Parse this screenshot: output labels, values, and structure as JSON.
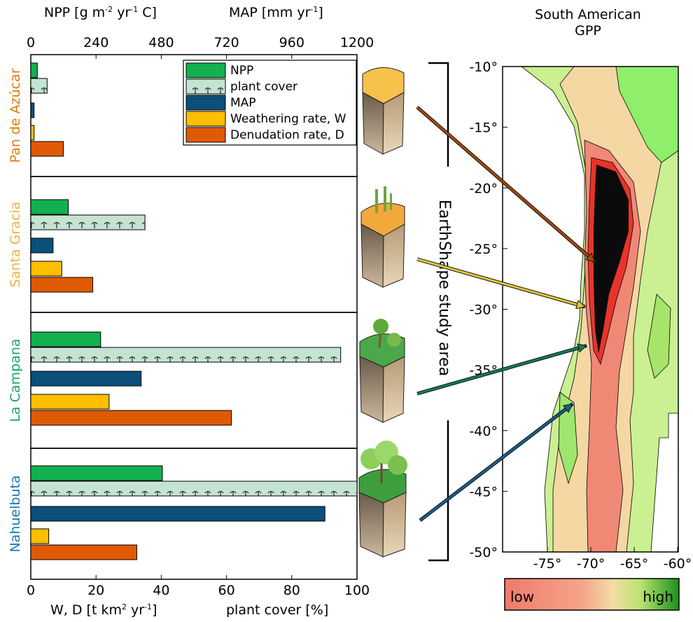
{
  "top_axis": {
    "npp_label": "NPP [g m",
    "npp_sup1": "-2",
    "npp_mid": " yr",
    "npp_sup2": "-1",
    "npp_end": " C]",
    "map_label": "MAP [mm yr",
    "map_sup": "-1",
    "map_end": "]",
    "ticks": [
      "0",
      "240",
      "480",
      "720",
      "960",
      "1200"
    ]
  },
  "bottom_axis": {
    "ticks": [
      "0",
      "20",
      "40",
      "60",
      "80",
      "100"
    ],
    "wd_label": "W, D [t km",
    "wd_sup": "2",
    "wd_end": " yr",
    "wd_sup2": "-1",
    "wd_close": "]",
    "cover_label": "plant cover [%]"
  },
  "legend": {
    "items": [
      "NPP",
      "plant cover",
      "MAP",
      "Weathering rate, W",
      "Denudation rate, D"
    ]
  },
  "colors": {
    "npp": "#12b04e",
    "cover": "#c5e3d3",
    "map": "#0b4f7a",
    "weathering": "#ffbe00",
    "denudation": "#e05a06",
    "pan": "#e07b10",
    "santa": "#f2b04a",
    "campana": "#1aa36a",
    "nahuel": "#1a77b5"
  },
  "chart_data": {
    "type": "bar",
    "orientation": "horizontal",
    "categories": [
      "Pan de Azúcar",
      "Santa Gracia",
      "La Campana",
      "Nahuelbuta"
    ],
    "series": [
      {
        "name": "NPP",
        "axis": "top",
        "values": [
          24,
          138,
          257,
          484
        ]
      },
      {
        "name": "plant cover",
        "axis": "bottom",
        "values": [
          5,
          35,
          95,
          100
        ]
      },
      {
        "name": "MAP",
        "axis": "top",
        "values": [
          12,
          82,
          406,
          1082
        ]
      },
      {
        "name": "Weathering rate, W",
        "axis": "bottom",
        "values": [
          1,
          9.5,
          24,
          5.5
        ]
      },
      {
        "name": "Denudation rate, D",
        "axis": "bottom",
        "values": [
          10,
          19,
          61.5,
          32.5
        ]
      }
    ],
    "top_xlim": [
      0,
      1200
    ],
    "bottom_xlim": [
      0,
      100
    ]
  },
  "bracket_label": "EarthShape study area",
  "map_panel": {
    "title_line1": "South American",
    "title_line2": "GPP",
    "lat_ticks": [
      "-10°",
      "-15°",
      "-20°",
      "-25°",
      "-30°",
      "-35°",
      "-40°",
      "-45°",
      "-50°"
    ],
    "lon_ticks": [
      "-75°",
      "-70°",
      "-65°",
      "-60°"
    ],
    "colorbar_low": "low",
    "colorbar_high": "high",
    "site_latitudes": [
      -26.1,
      -29.8,
      -33.0,
      -37.8
    ]
  }
}
